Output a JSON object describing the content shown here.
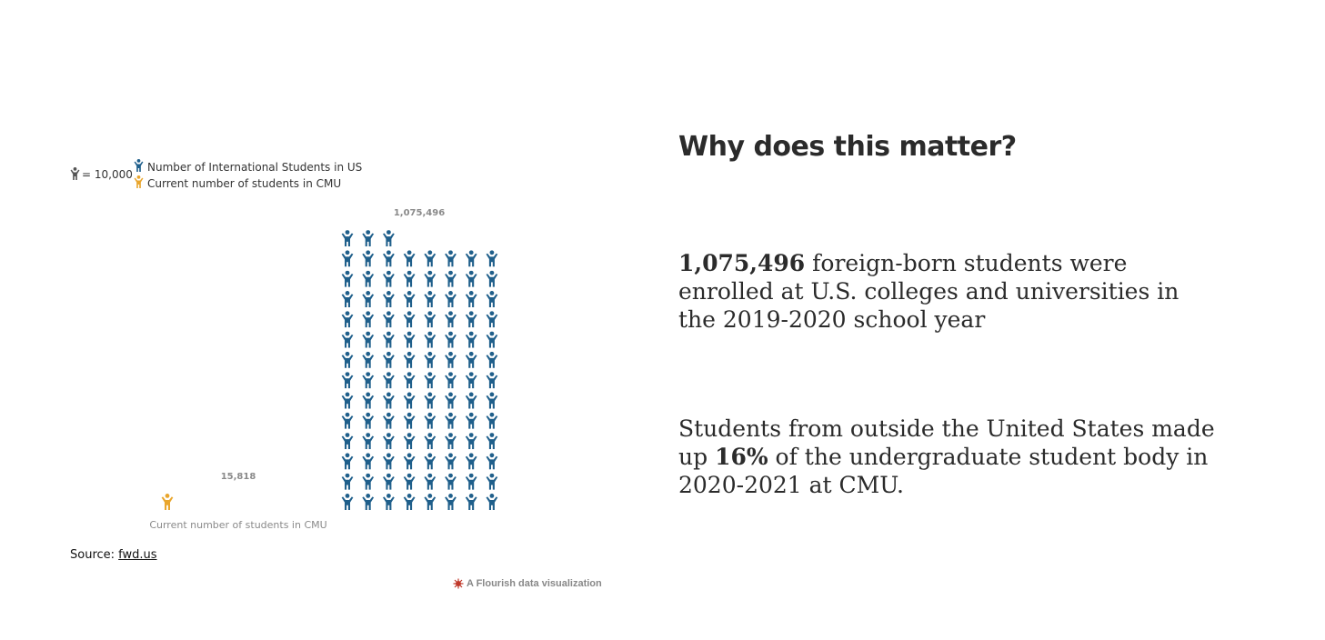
{
  "legend": {
    "unit_text": "= 10,000",
    "items": [
      {
        "label": "Number of International Students in US",
        "color": "#1f5f8b"
      },
      {
        "label": "Current number of students in CMU",
        "color": "#e9a62d"
      }
    ],
    "unit_icon_color": "#555555"
  },
  "chart_data": {
    "type": "pictogram",
    "unit": 10000,
    "unit_label": "= 10,000",
    "series": [
      {
        "name": "Current number of students in CMU",
        "value": 15818,
        "value_label": "15,818",
        "category_label": "Current number of students in CMU",
        "color": "#e9a62d"
      },
      {
        "name": "Number of International Students in US",
        "value": 1075496,
        "value_label": "1,075,496",
        "category_label": "",
        "color": "#1f5f8b"
      }
    ]
  },
  "source": {
    "prefix": "Source: ",
    "link_text": "fwd.us"
  },
  "credit": {
    "text": "A Flourish data visualization"
  },
  "article": {
    "heading": "Why does this matter?",
    "p1": {
      "bold": "1,075,496",
      "rest": " foreign-born students were enrolled at U.S. colleges and universities in the 2019-2020 school year"
    },
    "p2": {
      "before": "Students from outside the United States made up ",
      "bold": "16%",
      "after": " of the undergraduate student body in 2020-2021 at CMU."
    }
  }
}
